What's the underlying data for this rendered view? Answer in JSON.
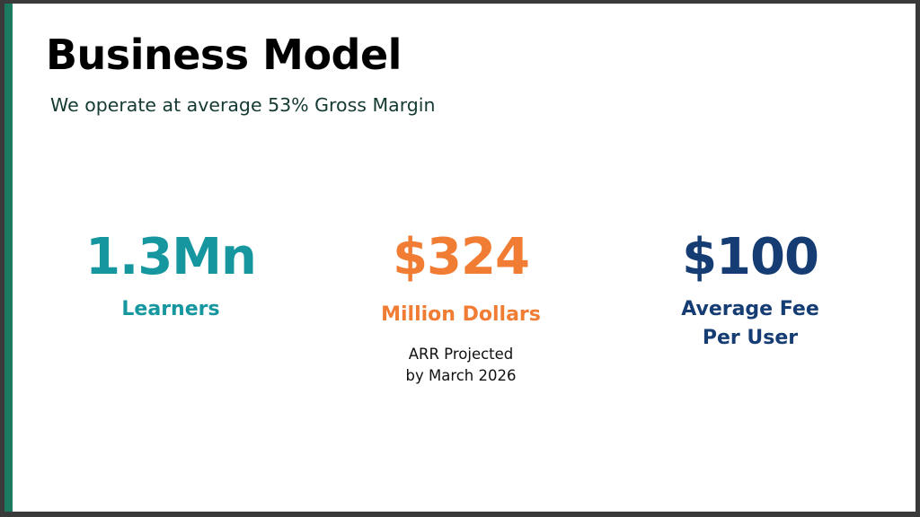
{
  "slide": {
    "title": "Business Model",
    "subtitle": "We operate at average 53% Gross Margin",
    "accent_color": "#1b7a60"
  },
  "metrics": [
    {
      "value": "1.3Mn",
      "label": "Learners",
      "color": "#1697a0"
    },
    {
      "value": "$324",
      "label": "Million Dollars",
      "note_line1": "ARR Projected",
      "note_line2": "by March 2026",
      "color": "#f07d33"
    },
    {
      "value": "$100",
      "label_line1": "Average Fee",
      "label_line2": "Per User",
      "color": "#163d73"
    }
  ]
}
